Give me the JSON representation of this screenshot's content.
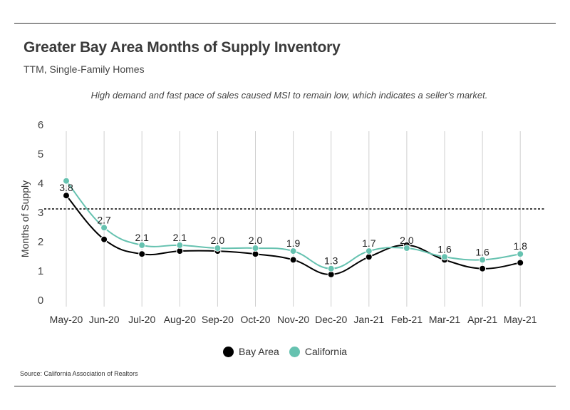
{
  "title": "Greater Bay Area Months of Supply Inventory",
  "subtitle": "TTM, Single-Family Homes",
  "annotation": "High demand and fast pace of sales caused MSI to remain low, which indicates a seller's market.",
  "source": "Source:  California Association of Realtors",
  "chart_data": {
    "type": "line",
    "categories": [
      "May-20",
      "Jun-20",
      "Jul-20",
      "Aug-20",
      "Sep-20",
      "Oct-20",
      "Nov-20",
      "Dec-20",
      "Jan-21",
      "Feb-21",
      "Mar-21",
      "Apr-21",
      "May-21"
    ],
    "ylabel": "Months of Supply",
    "ylim": [
      0,
      6
    ],
    "yticks": [
      0,
      1,
      2,
      3,
      4,
      5,
      6
    ],
    "grid": "vertical",
    "reference_line": 3,
    "legend_position": "bottom",
    "series": [
      {
        "name": "Bay Area",
        "color": "#000000",
        "values": [
          3.8,
          2.3,
          1.8,
          1.9,
          1.9,
          1.8,
          1.6,
          1.1,
          1.7,
          2.1,
          1.6,
          1.3,
          1.5
        ]
      },
      {
        "name": "California",
        "color": "#66c2b0",
        "values": [
          4.3,
          2.7,
          2.1,
          2.1,
          2.0,
          2.0,
          1.9,
          1.3,
          1.9,
          2.0,
          1.7,
          1.6,
          1.8
        ]
      }
    ],
    "data_labels": [
      "3.8",
      "2.7",
      "2.1",
      "2.1",
      "2.0",
      "2.0",
      "1.9",
      "1.3",
      "1.7",
      "2.0",
      "1.6",
      "1.6",
      "1.8"
    ]
  }
}
